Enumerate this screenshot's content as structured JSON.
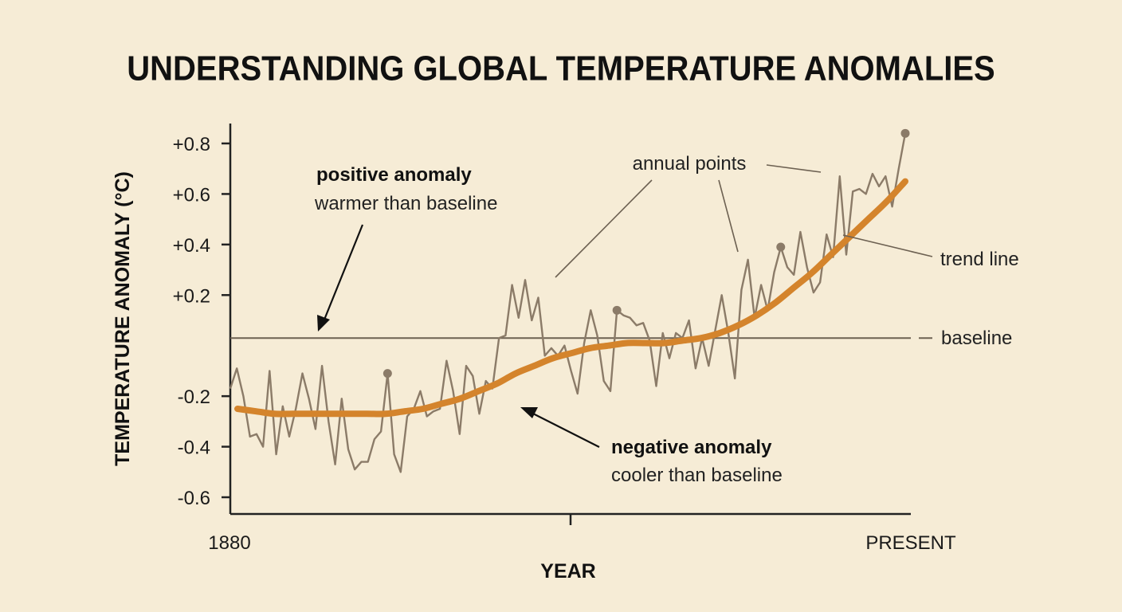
{
  "chart_data": {
    "type": "line",
    "title": "UNDERSTANDING GLOBAL TEMPERATURE ANOMALIES",
    "ylabel": "TEMPERATURE ANOMALY (°C)",
    "xlabel": "YEAR",
    "x_tick_labels": [
      "1880",
      "PRESENT"
    ],
    "y_ticks": [
      {
        "value": 0.8,
        "label": "+0.8"
      },
      {
        "value": 0.6,
        "label": "+0.6"
      },
      {
        "value": 0.4,
        "label": "+0.4"
      },
      {
        "value": 0.2,
        "label": "+0.2"
      },
      {
        "value": -0.2,
        "label": "-0.2"
      },
      {
        "value": -0.4,
        "label": "-0.4"
      },
      {
        "value": -0.6,
        "label": "-0.6"
      }
    ],
    "ylim": [
      -0.67,
      0.87
    ],
    "baseline_value": 0.03,
    "series": [
      {
        "values": [
          -0.17,
          -0.09,
          -0.2,
          -0.36,
          -0.35,
          -0.4,
          -0.1,
          -0.43,
          -0.24,
          -0.36,
          -0.25,
          -0.11,
          -0.21,
          -0.33,
          -0.08,
          -0.3,
          -0.47,
          -0.21,
          -0.41,
          -0.49,
          -0.46,
          -0.46,
          -0.37,
          -0.34,
          -0.11,
          -0.43,
          -0.5,
          -0.28,
          -0.25,
          -0.18,
          -0.28,
          -0.26,
          -0.25,
          -0.06,
          -0.18,
          -0.35,
          -0.08,
          -0.12,
          -0.27,
          -0.14,
          -0.17,
          0.03,
          0.04,
          0.24,
          0.11,
          0.26,
          0.1,
          0.19,
          -0.04,
          -0.01,
          -0.04,
          0.0,
          -0.1,
          -0.19,
          0.01,
          0.14,
          0.04,
          -0.14,
          -0.18,
          0.14,
          0.12,
          0.11,
          0.08,
          0.09,
          0.02,
          -0.16,
          0.05,
          -0.05,
          0.05,
          0.03,
          0.1,
          -0.09,
          0.03,
          -0.08,
          0.06,
          0.2,
          0.05,
          -0.13,
          0.22,
          0.34,
          0.11,
          0.24,
          0.14,
          0.29,
          0.39,
          0.31,
          0.28,
          0.45,
          0.31,
          0.21,
          0.25,
          0.44,
          0.35,
          0.67,
          0.36,
          0.61,
          0.62,
          0.6,
          0.68,
          0.63,
          0.67,
          0.55,
          0.7,
          0.84
        ]
      },
      {
        "name": "trend line",
        "values": [
          -0.25,
          -0.26,
          -0.27,
          -0.27,
          -0.27,
          -0.27,
          -0.27,
          -0.27,
          -0.27,
          -0.26,
          -0.25,
          -0.23,
          -0.21,
          -0.18,
          -0.15,
          -0.11,
          -0.08,
          -0.05,
          -0.03,
          -0.01,
          0.0,
          0.01,
          0.01,
          0.01,
          0.02,
          0.03,
          0.05,
          0.08,
          0.12,
          0.17,
          0.23,
          0.29,
          0.36,
          0.43,
          0.5,
          0.57,
          0.65
        ]
      }
    ],
    "annotations": {
      "positive_title": "positive anomaly",
      "positive_sub": "warmer than baseline",
      "negative_title": "negative anomaly",
      "negative_sub": "cooler than baseline",
      "annual_points": "annual points",
      "trend_line": "trend line",
      "baseline": "baseline"
    },
    "colors": {
      "background": "#f6ecd6",
      "annual_line": "#8b7b68",
      "trend_line": "#d4842c",
      "baseline": "#6d6152",
      "axis": "#222222"
    }
  }
}
